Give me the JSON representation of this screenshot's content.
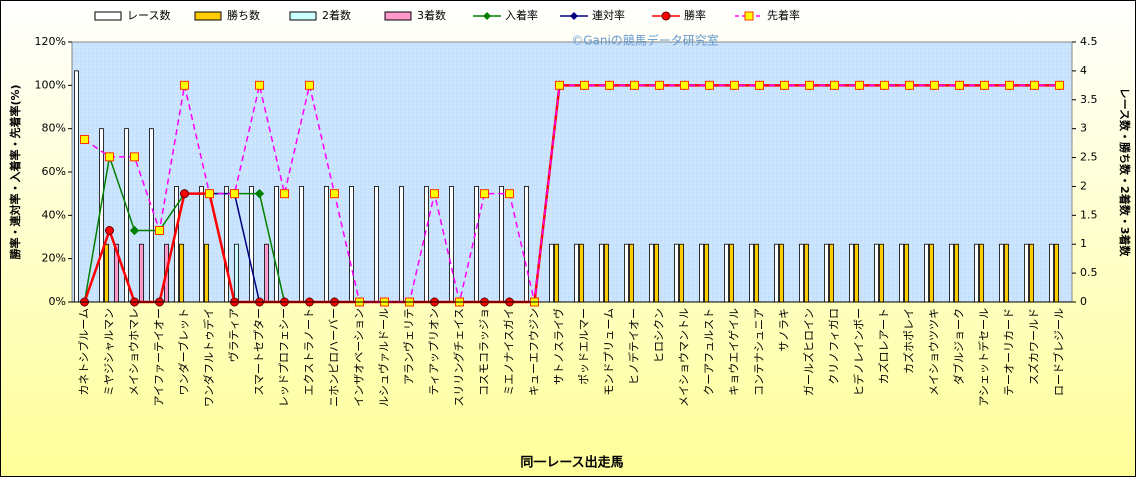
{
  "chart_data": {
    "type": "combo",
    "watermark": "©Ganiの競馬データ研究室",
    "x_label": "同一レース出走馬",
    "y_label": "勝率・連対率・入着率・先着率(%)",
    "y2_label": "レース数・勝ち数・2着数・3着数",
    "categories": [
      "カネトシブルーム",
      "ミヤジシャルマン",
      "メイショウホマレ",
      "アイファーテイオー",
      "ワンダーブレット",
      "ワンダフルトゥデイ",
      "ヴラティア",
      "スマートセプター",
      "レッドプロフェシー",
      "エクストラノート",
      "ニホンピロハーバー",
      "インザオベーション",
      "ルシュヴァルドール",
      "アランヴェリテ",
      "ティアップリオン",
      "スリリングチェイス",
      "コスモコラッジョ",
      "ミエノナイスガイ",
      "キューエフウジン",
      "サトノスライヴ",
      "ポッドエルマー",
      "モンドプリューム",
      "ヒノデテイオー",
      "ヒロシクン",
      "メイショウマントル",
      "クーアフュルスト",
      "キョウエイゲイル",
      "コンテナシュニア",
      "サノラキ",
      "ガールズヒロイン",
      "クリノフィガロ",
      "ヒデノレインボー",
      "カズロレアート",
      "カズホポレイ",
      "メイショウツツキ",
      "ダブルジョーク",
      "アシェットデセール",
      "テーオーリカード",
      "スズカワールド",
      "ロードブレジール"
    ],
    "ylim": [
      0,
      120
    ],
    "yticks": [
      {
        "value": 0,
        "label": "0%"
      },
      {
        "value": 20,
        "label": "20%"
      },
      {
        "value": 40,
        "label": "40%"
      },
      {
        "value": 60,
        "label": "60%"
      },
      {
        "value": 80,
        "label": "80%"
      },
      {
        "value": 100,
        "label": "100%"
      },
      {
        "value": 120,
        "label": "120%"
      }
    ],
    "y2lim": [
      0,
      4.5
    ],
    "y2ticks": [
      0,
      0.5,
      1,
      1.5,
      2,
      2.5,
      3,
      3.5,
      4,
      4.5
    ],
    "grid": false,
    "legend": "top",
    "series": [
      {
        "name": "レース数",
        "kind": "bar",
        "axis": "y2",
        "color": "#ffffff",
        "values": [
          4,
          3,
          3,
          3,
          2,
          2,
          2,
          2,
          2,
          2,
          2,
          2,
          2,
          2,
          2,
          2,
          2,
          2,
          2,
          1,
          1,
          1,
          1,
          1,
          1,
          1,
          1,
          1,
          1,
          1,
          1,
          1,
          1,
          1,
          1,
          1,
          1,
          1,
          1,
          1
        ]
      },
      {
        "name": "勝ち数",
        "kind": "bar",
        "axis": "y2",
        "color": "#ffcc00",
        "values": [
          0,
          1,
          0,
          0,
          1,
          1,
          0,
          0,
          0,
          0,
          0,
          0,
          0,
          0,
          0,
          0,
          0,
          0,
          0,
          1,
          1,
          1,
          1,
          1,
          1,
          1,
          1,
          1,
          1,
          1,
          1,
          1,
          1,
          1,
          1,
          1,
          1,
          1,
          1,
          1
        ]
      },
      {
        "name": "2着数",
        "kind": "bar",
        "axis": "y2",
        "color": "#ccffff",
        "values": [
          0,
          0,
          0,
          0,
          0,
          0,
          1,
          0,
          0,
          0,
          0,
          0,
          0,
          0,
          0,
          0,
          0,
          0,
          0,
          0,
          0,
          0,
          0,
          0,
          0,
          0,
          0,
          0,
          0,
          0,
          0,
          0,
          0,
          0,
          0,
          0,
          0,
          0,
          0,
          0
        ]
      },
      {
        "name": "3着数",
        "kind": "bar",
        "axis": "y2",
        "color": "#ff99cc",
        "values": [
          0,
          1,
          1,
          1,
          0,
          0,
          0,
          1,
          0,
          0,
          0,
          0,
          0,
          0,
          0,
          0,
          0,
          0,
          0,
          0,
          0,
          0,
          0,
          0,
          0,
          0,
          0,
          0,
          0,
          0,
          0,
          0,
          0,
          0,
          0,
          0,
          0,
          0,
          0,
          0
        ]
      },
      {
        "name": "入着率",
        "kind": "line",
        "marker": "diamond",
        "color": "#008000",
        "values": [
          0,
          67,
          33,
          33,
          50,
          50,
          50,
          50,
          0,
          0,
          0,
          0,
          0,
          0,
          0,
          0,
          0,
          0,
          0,
          100,
          100,
          100,
          100,
          100,
          100,
          100,
          100,
          100,
          100,
          100,
          100,
          100,
          100,
          100,
          100,
          100,
          100,
          100,
          100,
          100
        ]
      },
      {
        "name": "連対率",
        "kind": "line",
        "marker": "diamond",
        "color": "#000080",
        "values": [
          0,
          33,
          0,
          0,
          50,
          50,
          50,
          0,
          0,
          0,
          0,
          0,
          0,
          0,
          0,
          0,
          0,
          0,
          0,
          100,
          100,
          100,
          100,
          100,
          100,
          100,
          100,
          100,
          100,
          100,
          100,
          100,
          100,
          100,
          100,
          100,
          100,
          100,
          100,
          100
        ]
      },
      {
        "name": "勝率",
        "kind": "line",
        "marker": "circle",
        "color": "#ff0000",
        "values": [
          0,
          33,
          0,
          0,
          50,
          50,
          0,
          0,
          0,
          0,
          0,
          0,
          0,
          0,
          0,
          0,
          0,
          0,
          0,
          100,
          100,
          100,
          100,
          100,
          100,
          100,
          100,
          100,
          100,
          100,
          100,
          100,
          100,
          100,
          100,
          100,
          100,
          100,
          100,
          100
        ]
      },
      {
        "name": "先着率",
        "kind": "line",
        "marker": "square",
        "dashed": true,
        "color": "#ff00ff",
        "values": [
          75,
          67,
          67,
          33,
          100,
          50,
          50,
          100,
          50,
          100,
          50,
          0,
          0,
          0,
          50,
          0,
          50,
          50,
          0,
          100,
          100,
          100,
          100,
          100,
          100,
          100,
          100,
          100,
          100,
          100,
          100,
          100,
          100,
          100,
          100,
          100,
          100,
          100,
          100,
          100
        ]
      }
    ]
  }
}
